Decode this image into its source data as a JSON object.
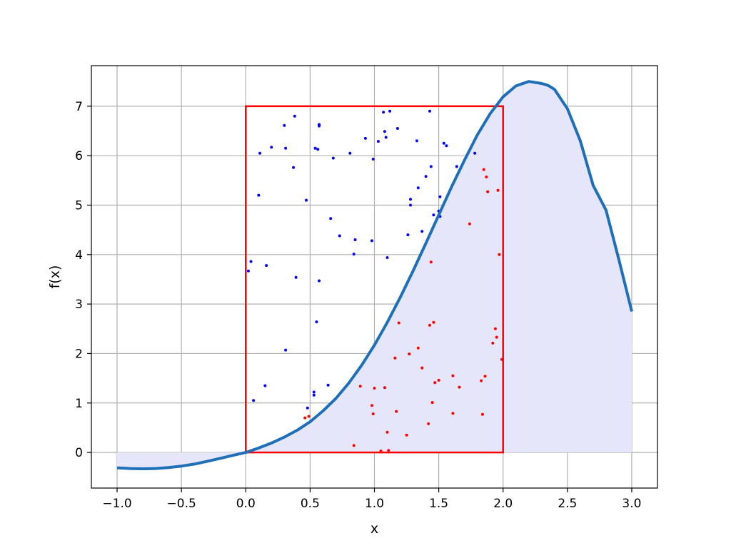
{
  "chart_data": {
    "type": "line",
    "title": "",
    "xlabel": "x",
    "ylabel": "f(x)",
    "xlim": [
      -1.2,
      3.2
    ],
    "ylim": [
      -0.72,
      7.82
    ],
    "grid": true,
    "xticks": [
      -1.0,
      -0.5,
      0.0,
      0.5,
      1.0,
      1.5,
      2.0,
      2.5,
      3.0
    ],
    "xtick_labels": [
      "−1.0",
      "−0.5",
      "0.0",
      "0.5",
      "1.0",
      "1.5",
      "2.0",
      "2.5",
      "3.0"
    ],
    "yticks": [
      0,
      1,
      2,
      3,
      4,
      5,
      6,
      7
    ],
    "ytick_labels": [
      "0",
      "1",
      "2",
      "3",
      "4",
      "5",
      "6",
      "7"
    ],
    "curve": {
      "color": "#1f6fb8",
      "fill_color": "#e6e6fa",
      "x": [
        -1.0,
        -0.9,
        -0.8,
        -0.7,
        -0.6,
        -0.5,
        -0.4,
        -0.3,
        -0.2,
        -0.1,
        0.0,
        0.1,
        0.2,
        0.3,
        0.4,
        0.5,
        0.6,
        0.7,
        0.8,
        0.9,
        1.0,
        1.1,
        1.2,
        1.3,
        1.4,
        1.5,
        1.6,
        1.7,
        1.8,
        1.9,
        2.0,
        2.1,
        2.2,
        2.3,
        2.35,
        2.4,
        2.5,
        2.6,
        2.7,
        2.8,
        2.9,
        3.0
      ],
      "y": [
        -0.31,
        -0.325,
        -0.33,
        -0.325,
        -0.305,
        -0.275,
        -0.235,
        -0.18,
        -0.12,
        -0.06,
        0.0,
        0.09,
        0.19,
        0.31,
        0.45,
        0.62,
        0.84,
        1.09,
        1.4,
        1.76,
        2.17,
        2.63,
        3.13,
        3.67,
        4.23,
        4.8,
        5.37,
        5.91,
        6.42,
        6.85,
        7.19,
        7.41,
        7.5,
        7.46,
        7.42,
        7.34,
        6.95,
        6.3,
        5.4,
        4.9,
        3.9,
        2.85
      ]
    },
    "box": {
      "x": [
        0.0,
        2.0
      ],
      "y": [
        0.0,
        7.0
      ],
      "color": "#ff0000"
    },
    "points_above": {
      "color": "#0000ff",
      "x": [
        0.02,
        0.04,
        0.06,
        0.1,
        0.11,
        0.15,
        0.16,
        0.2,
        0.3,
        0.31,
        0.31,
        0.37,
        0.38,
        0.39,
        0.47,
        0.48,
        0.53,
        0.53,
        0.54,
        0.55,
        0.56,
        0.57,
        0.57,
        0.57,
        0.64,
        0.66,
        0.68,
        0.73,
        0.81,
        0.84,
        0.85,
        0.93,
        0.98,
        0.99,
        1.03,
        1.07,
        1.08,
        1.09,
        1.1,
        1.12,
        1.18,
        1.26,
        1.28,
        1.28,
        1.33,
        1.34,
        1.37,
        1.4,
        1.43,
        1.44,
        1.46,
        1.5,
        1.51,
        1.51,
        1.54,
        1.56,
        1.64,
        1.78
      ],
      "y": [
        3.67,
        3.86,
        1.05,
        5.2,
        6.05,
        1.35,
        3.78,
        6.17,
        6.61,
        6.15,
        2.07,
        5.76,
        6.8,
        3.54,
        5.1,
        0.9,
        1.22,
        1.16,
        6.15,
        2.64,
        6.13,
        6.6,
        6.63,
        3.47,
        1.36,
        4.73,
        5.95,
        4.38,
        6.05,
        4.01,
        4.3,
        6.35,
        4.28,
        5.93,
        6.29,
        6.88,
        6.49,
        6.37,
        3.94,
        6.9,
        6.55,
        4.4,
        5.12,
        5.0,
        6.3,
        5.35,
        4.47,
        5.58,
        6.9,
        5.78,
        4.8,
        4.88,
        4.77,
        5.17,
        6.25,
        6.2,
        5.78,
        6.05
      ]
    },
    "points_below": {
      "color": "#ff0000",
      "x": [
        0.46,
        0.49,
        0.84,
        0.89,
        0.98,
        0.99,
        1.0,
        1.05,
        1.08,
        1.1,
        1.11,
        1.16,
        1.17,
        1.19,
        1.25,
        1.27,
        1.34,
        1.37,
        1.42,
        1.43,
        1.44,
        1.45,
        1.46,
        1.47,
        1.5,
        1.61,
        1.61,
        1.66,
        1.74,
        1.83,
        1.84,
        1.85,
        1.86,
        1.87,
        1.88,
        1.92,
        1.94,
        1.95,
        1.96,
        1.97,
        1.99
      ],
      "y": [
        0.7,
        0.73,
        0.14,
        1.34,
        0.95,
        0.78,
        1.3,
        0.03,
        1.31,
        0.41,
        0.04,
        1.91,
        0.83,
        2.62,
        0.35,
        1.99,
        2.11,
        1.71,
        0.58,
        2.57,
        3.85,
        1.01,
        2.63,
        1.41,
        1.46,
        1.55,
        0.79,
        1.32,
        4.62,
        1.45,
        0.77,
        5.72,
        1.54,
        5.57,
        5.27,
        2.21,
        2.5,
        2.33,
        5.3,
        4.0,
        1.88
      ]
    }
  }
}
